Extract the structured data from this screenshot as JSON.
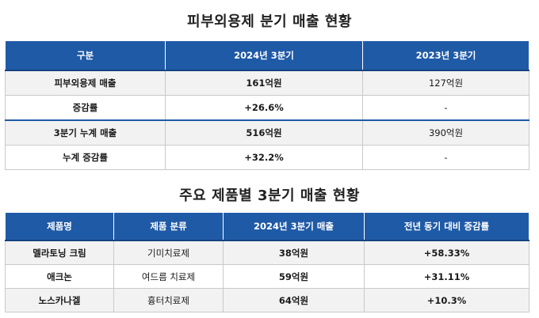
{
  "table1": {
    "title": "피부외용제 분기 매출 현황",
    "headers": [
      "구분",
      "2024년 3분기",
      "2023년 3분기"
    ],
    "rows": [
      [
        "피부외용제 매출",
        "161억원",
        "127억원"
      ],
      [
        "증감률",
        "+26.6%",
        "-"
      ],
      [
        "3분기 누계 매출",
        "516억원",
        "390억원"
      ],
      [
        "누계 증감률",
        "+32.2%",
        "-"
      ]
    ]
  },
  "table2": {
    "title": "주요 제품별 3분기 매출 현황",
    "headers": [
      "제품명",
      "제품 분류",
      "2024년 3분기 매출",
      "전년 동기 대비 증감률"
    ],
    "rows": [
      [
        "멜라토닝 크림",
        "기미치료제",
        "38억원",
        "+58.33%"
      ],
      [
        "애크논",
        "여드름 치료제",
        "59억원",
        "+31.11%"
      ],
      [
        "노스카나겔",
        "흉터치료제",
        "64억원",
        "+10.3%"
      ]
    ]
  }
}
